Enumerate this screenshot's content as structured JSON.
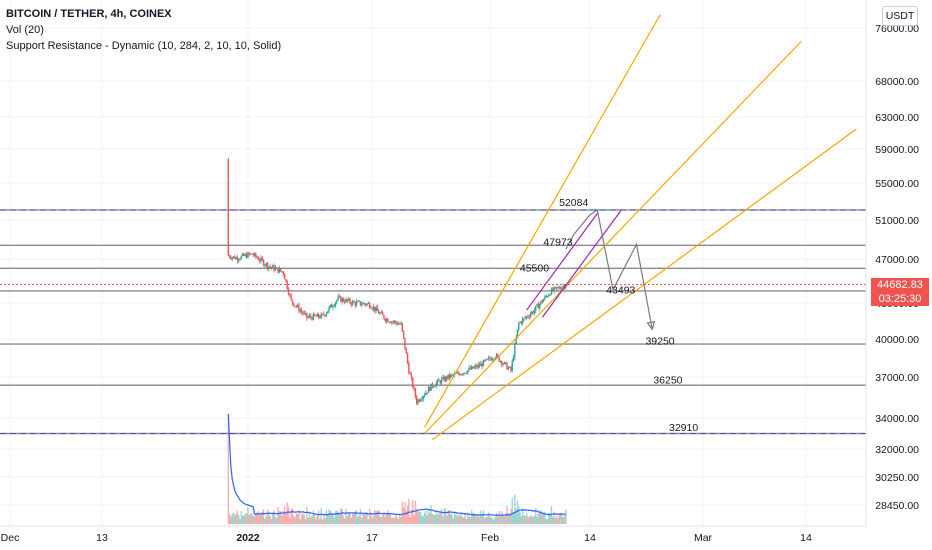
{
  "header": {
    "title": "BITCOIN / TETHER, 4h, COINEX",
    "indicator_vol": "Vol (20)",
    "indicator_sr": "Support Resistance - Dynamic (10, 284, 2, 10, 10, Solid)",
    "currency_button": "USDT"
  },
  "price_tag": {
    "price": "44682.83",
    "countdown": "03:25:30"
  },
  "colors": {
    "up": "#26a69a",
    "down": "#ef5350",
    "level": "#8a8a8a",
    "level_dashed": "#3f51b5",
    "channel": "#f7a600",
    "pitch": "#9c27b0",
    "projection": "#787b86",
    "vol_ma": "#2962ff",
    "current": "#ef5350"
  },
  "chart_data": {
    "type": "candlestick",
    "symbol": "BITCOIN / TETHER",
    "timeframe": "4h",
    "exchange": "COINEX",
    "x_axis_labels": [
      "Dec",
      "13",
      "2022",
      "17",
      "Feb",
      "14",
      "Mar",
      "14"
    ],
    "y_axis_labels": [
      "76000.00",
      "68000.00",
      "63000.00",
      "59000.00",
      "55000.00",
      "51000.00",
      "47000.00",
      "43000.00",
      "40000.00",
      "37000.00",
      "34000.00",
      "32000.00",
      "30250.00",
      "28450.00"
    ],
    "ylim": [
      27600,
      78000
    ],
    "current_price": 44682.83,
    "support_resistance_levels": [
      {
        "value": 52084,
        "style": "dashed"
      },
      {
        "value": 48400,
        "style": "solid"
      },
      {
        "value": 46150,
        "style": "solid"
      },
      {
        "value": 44100,
        "style": "solid"
      },
      {
        "value": 39600,
        "style": "solid"
      },
      {
        "value": 36400,
        "style": "solid"
      },
      {
        "value": 33000,
        "style": "dashed"
      }
    ],
    "annotations": [
      {
        "text": "52084",
        "x": "Feb 11",
        "y": 52084
      },
      {
        "text": "47973",
        "x": "Feb 9",
        "y": 47973
      },
      {
        "text": "45500",
        "x": "Feb 6",
        "y": 45500
      },
      {
        "text": "43493",
        "x": "Feb 17",
        "y": 43493
      },
      {
        "text": "39250",
        "x": "Feb 22",
        "y": 39250
      },
      {
        "text": "36250",
        "x": "Feb 23",
        "y": 36250
      },
      {
        "text": "32910",
        "x": "Feb 25",
        "y": 32910
      }
    ],
    "projection_path": [
      {
        "x": "Feb 10",
        "y": 48000
      },
      {
        "x": "Feb 11",
        "y": 49500
      },
      {
        "x": "Feb 13",
        "y": 51500
      },
      {
        "x": "Feb 14",
        "y": 52084
      },
      {
        "x": "Feb 16",
        "y": 44200
      },
      {
        "x": "Feb 19",
        "y": 48500
      },
      {
        "x": "Feb 21",
        "y": 40800
      }
    ],
    "trendlines": [
      {
        "from": {
          "x": "Jan 23",
          "y": 33400
        },
        "to": {
          "x": "Feb 22",
          "y": 78000
        }
      },
      {
        "from": {
          "x": "Jan 23",
          "y": 33000
        },
        "to": {
          "x": "Mar 12",
          "y": 74000
        }
      },
      {
        "from": {
          "x": "Jan 24",
          "y": 32600
        },
        "to": {
          "x": "Mar 19",
          "y": 61500
        }
      }
    ],
    "pitchfork_channel": [
      {
        "from": {
          "x": "Feb 5",
          "y": 42400
        },
        "to": {
          "x": "Feb 14",
          "y": 51700
        }
      },
      {
        "from": {
          "x": "Feb 7",
          "y": 41800
        },
        "to": {
          "x": "Feb 17",
          "y": 52000
        }
      }
    ],
    "price_path": [
      {
        "x": "Nov 30",
        "y": 57800
      },
      {
        "x": "Dec 2",
        "y": 57000
      },
      {
        "x": "Dec 4",
        "y": 48000
      },
      {
        "x": "Dec 6",
        "y": 49200
      },
      {
        "x": "Dec 8",
        "y": 50700
      },
      {
        "x": "Dec 10",
        "y": 48800
      },
      {
        "x": "Dec 12",
        "y": 49700
      },
      {
        "x": "Dec 14",
        "y": 47400
      },
      {
        "x": "Dec 16",
        "y": 48900
      },
      {
        "x": "Dec 18",
        "y": 46600
      },
      {
        "x": "Dec 20",
        "y": 46800
      },
      {
        "x": "Dec 22",
        "y": 48500
      },
      {
        "x": "Dec 24",
        "y": 50800
      },
      {
        "x": "Dec 27",
        "y": 50600
      },
      {
        "x": "Dec 28",
        "y": 47600
      },
      {
        "x": "Dec 30",
        "y": 47100
      },
      {
        "x": "Jan 1",
        "y": 47500
      },
      {
        "x": "Jan 3",
        "y": 46400
      },
      {
        "x": "Jan 5",
        "y": 45800
      },
      {
        "x": "Jan 6",
        "y": 43200
      },
      {
        "x": "Jan 8",
        "y": 41800
      },
      {
        "x": "Jan 10",
        "y": 41900
      },
      {
        "x": "Jan 12",
        "y": 43400
      },
      {
        "x": "Jan 14",
        "y": 43000
      },
      {
        "x": "Jan 16",
        "y": 42900
      },
      {
        "x": "Jan 18",
        "y": 41700
      },
      {
        "x": "Jan 20",
        "y": 41200
      },
      {
        "x": "Jan 21",
        "y": 37500
      },
      {
        "x": "Jan 22",
        "y": 35200
      },
      {
        "x": "Jan 24",
        "y": 36400
      },
      {
        "x": "Jan 26",
        "y": 37000
      },
      {
        "x": "Jan 28",
        "y": 37400
      },
      {
        "x": "Jan 30",
        "y": 37900
      },
      {
        "x": "Feb 1",
        "y": 38700
      },
      {
        "x": "Feb 3",
        "y": 37500
      },
      {
        "x": "Feb 4",
        "y": 41300
      },
      {
        "x": "Feb 6",
        "y": 42400
      },
      {
        "x": "Feb 8",
        "y": 44000
      },
      {
        "x": "Feb 10",
        "y": 44682.83
      }
    ],
    "volume_axis": "none"
  }
}
